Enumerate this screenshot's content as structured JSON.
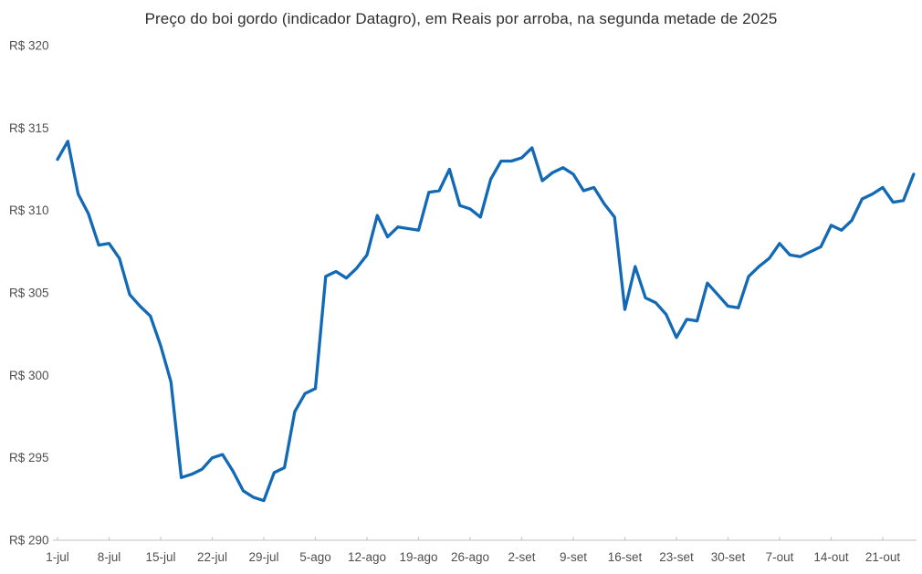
{
  "chart_data": {
    "type": "line",
    "title": "Preço do boi gordo (indicador Datagro), em Reais por arroba, na segunda metade de 2025",
    "currency_prefix": "R$",
    "ylim": [
      290,
      320
    ],
    "y_tick_values": [
      320,
      315,
      310,
      305,
      300,
      295,
      290
    ],
    "y_tick_labels": [
      "R$ 320",
      "R$ 315",
      "R$ 310",
      "R$ 305",
      "R$ 300",
      "R$ 295",
      "R$ 290"
    ],
    "x_tick_labels": [
      "1-jul",
      "8-jul",
      "15-jul",
      "22-jul",
      "29-jul",
      "5-ago",
      "12-ago",
      "19-ago",
      "26-ago",
      "2-set",
      "9-set",
      "16-set",
      "23-set",
      "30-set",
      "7-out",
      "14-out",
      "21-out"
    ],
    "x_tick_every": 5,
    "grid": "off",
    "legend": "none",
    "line_color": "#1269b5",
    "axis_color": "#d6d6d6",
    "tick_color": "#c8c8c8",
    "label_color": "#4f4f4f",
    "x": [
      "1-jul",
      "2-jul",
      "3-jul",
      "4-jul",
      "7-jul",
      "8-jul",
      "9-jul",
      "10-jul",
      "11-jul",
      "14-jul",
      "15-jul",
      "16-jul",
      "17-jul",
      "18-jul",
      "21-jul",
      "22-jul",
      "23-jul",
      "24-jul",
      "25-jul",
      "28-jul",
      "29-jul",
      "30-jul",
      "31-jul",
      "1-ago",
      "4-ago",
      "5-ago",
      "6-ago",
      "7-ago",
      "8-ago",
      "11-ago",
      "12-ago",
      "13-ago",
      "14-ago",
      "15-ago",
      "18-ago",
      "19-ago",
      "20-ago",
      "21-ago",
      "22-ago",
      "25-ago",
      "26-ago",
      "27-ago",
      "28-ago",
      "29-ago",
      "1-set",
      "2-set",
      "3-set",
      "4-set",
      "5-set",
      "8-set",
      "9-set",
      "10-set",
      "11-set",
      "12-set",
      "15-set",
      "16-set",
      "17-set",
      "18-set",
      "19-set",
      "22-set",
      "23-set",
      "24-set",
      "25-set",
      "26-set",
      "29-set",
      "30-set",
      "1-out",
      "2-out",
      "3-out",
      "6-out",
      "7-out",
      "8-out",
      "9-out",
      "10-out",
      "13-out",
      "14-out",
      "15-out",
      "16-out",
      "17-out",
      "20-out",
      "21-out",
      "22-out",
      "23-out",
      "24-out"
    ],
    "values": [
      313.1,
      314.2,
      311.0,
      309.8,
      307.9,
      308.0,
      307.1,
      304.9,
      304.2,
      303.6,
      301.8,
      299.6,
      293.8,
      294.0,
      294.3,
      295.0,
      295.2,
      294.2,
      293.0,
      292.6,
      292.4,
      294.1,
      294.4,
      297.8,
      298.9,
      299.2,
      306.0,
      306.3,
      305.9,
      306.5,
      307.3,
      309.7,
      308.4,
      309.0,
      308.9,
      308.8,
      311.1,
      311.2,
      312.5,
      310.3,
      310.1,
      309.6,
      311.9,
      313.0,
      313.0,
      313.2,
      313.8,
      311.8,
      312.3,
      312.6,
      312.2,
      311.2,
      311.4,
      310.4,
      309.6,
      304.0,
      306.6,
      304.7,
      304.4,
      303.7,
      302.3,
      303.4,
      303.3,
      305.6,
      304.9,
      304.2,
      304.1,
      306.0,
      306.6,
      307.1,
      308.0,
      307.3,
      307.2,
      307.5,
      307.8,
      309.1,
      308.8,
      309.4,
      310.7,
      311.0,
      311.4,
      310.5,
      310.6,
      312.2
    ]
  }
}
